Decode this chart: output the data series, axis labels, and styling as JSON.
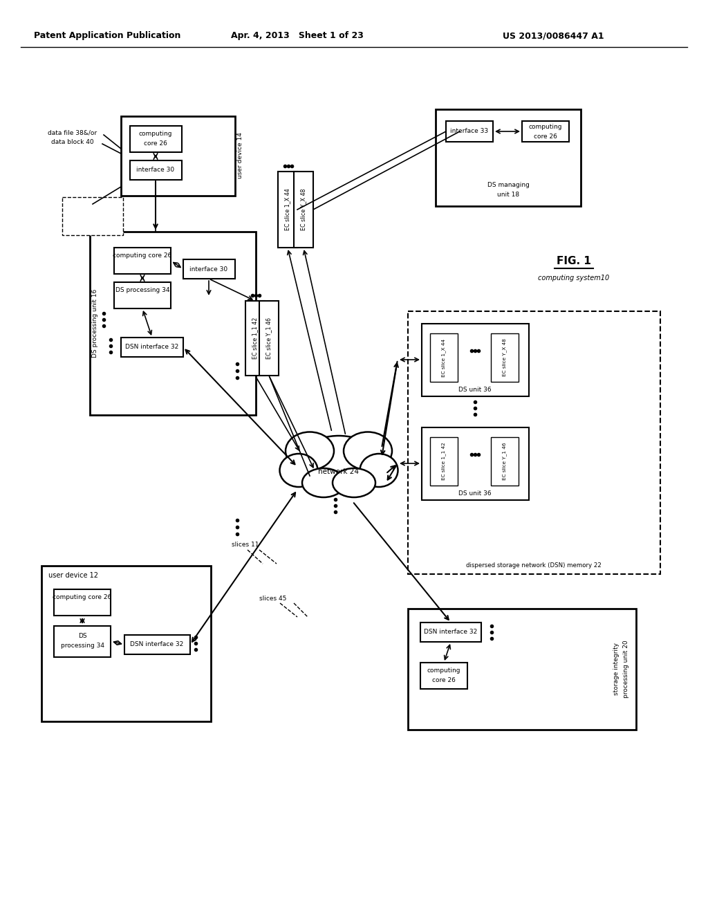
{
  "header_left": "Patent Application Publication",
  "header_mid": "Apr. 4, 2013   Sheet 1 of 23",
  "header_right": "US 2013/0086447 A1",
  "fig_label": "FIG. 1",
  "fig_sublabel": "computing system10",
  "background_color": "#ffffff",
  "text_color": "#000000"
}
